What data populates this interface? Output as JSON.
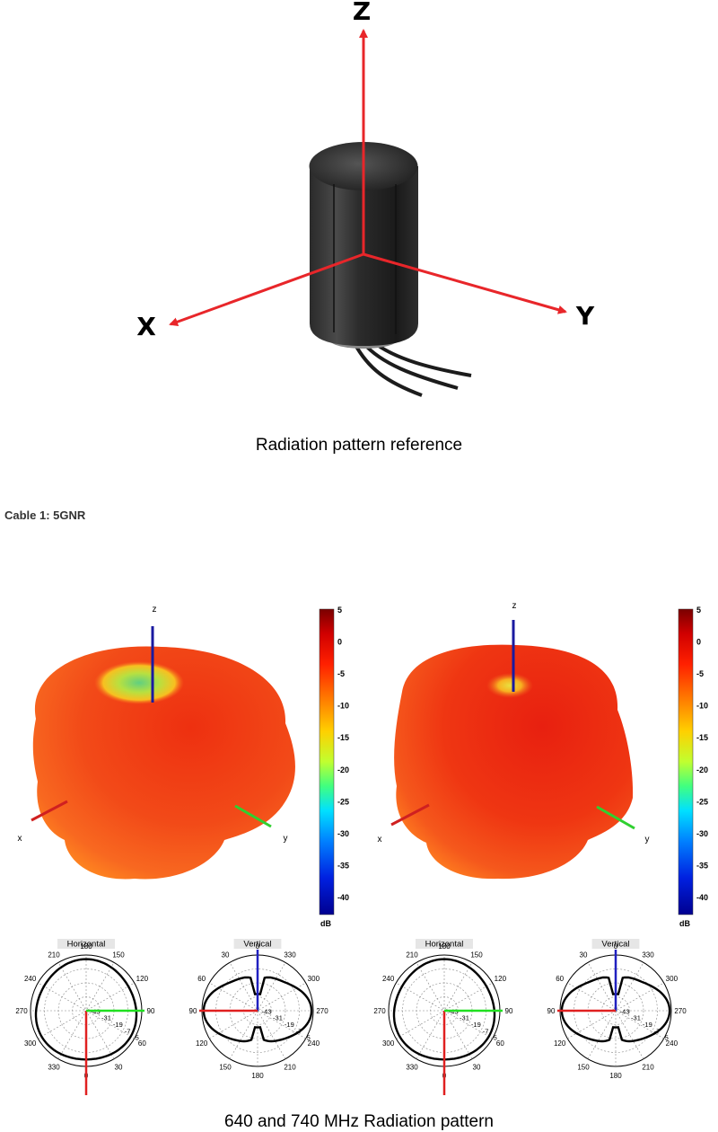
{
  "reference": {
    "axis_labels": {
      "z": "Z",
      "x": "X",
      "y": "Y"
    },
    "caption": "Radiation pattern reference"
  },
  "section_title": "Cable 1: 5GNR",
  "patterns": [
    {
      "axis_labels": {
        "z": "z",
        "x": "x",
        "y": "y"
      },
      "colorbar": {
        "ticks": [
          "5",
          "0",
          "-5",
          "-10",
          "-15",
          "-20",
          "-25",
          "-30",
          "-35",
          "-40"
        ],
        "unit": "dB"
      },
      "horizontal": {
        "title": "Horizontal",
        "angles": [
          "180",
          "150",
          "120",
          "90",
          "60",
          "30",
          "0",
          "330",
          "300",
          "270",
          "240",
          "210"
        ],
        "rings": [
          "-43",
          "-31",
          "-19",
          "-7",
          "5"
        ]
      },
      "vertical": {
        "title": "Vertical",
        "angles": [
          "0",
          "330",
          "300",
          "270",
          "240",
          "210",
          "180",
          "150",
          "120",
          "90",
          "60",
          "30"
        ],
        "rings": [
          "-43",
          "-31",
          "-19",
          "-7",
          "5"
        ]
      }
    },
    {
      "axis_labels": {
        "z": "z",
        "x": "x",
        "y": "y"
      },
      "colorbar": {
        "ticks": [
          "5",
          "0",
          "-5",
          "-10",
          "-15",
          "-20",
          "-25",
          "-30",
          "-35",
          "-40"
        ],
        "unit": "dB"
      },
      "horizontal": {
        "title": "Horizontal",
        "angles": [
          "180",
          "150",
          "120",
          "90",
          "60",
          "30",
          "0",
          "330",
          "300",
          "270",
          "240",
          "210"
        ],
        "rings": [
          "-43",
          "-31",
          "-19",
          "-7",
          "5"
        ]
      },
      "vertical": {
        "title": "Vertical",
        "angles": [
          "0",
          "330",
          "300",
          "270",
          "240",
          "210",
          "180",
          "150",
          "120",
          "90",
          "60",
          "30"
        ],
        "rings": [
          "-43",
          "-31",
          "-19",
          "-7",
          "5"
        ]
      }
    }
  ],
  "caption": "640 and 740 MHz Radiation pattern"
}
